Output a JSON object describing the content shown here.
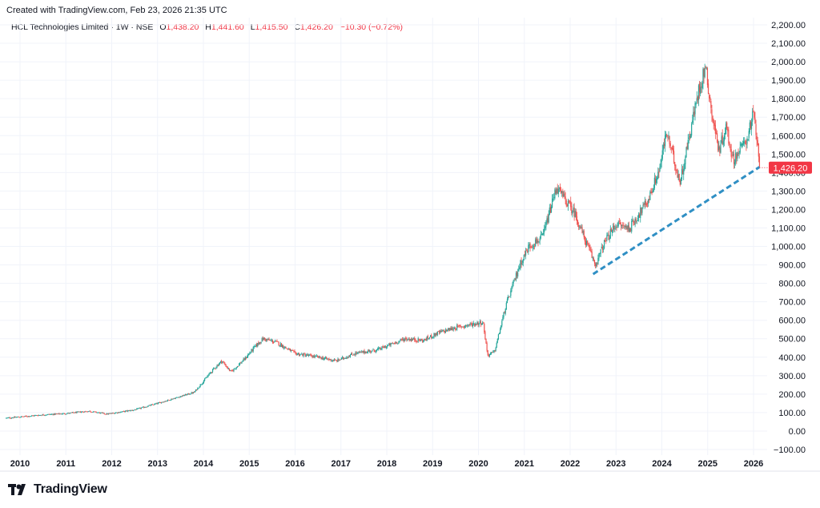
{
  "header": {
    "created_text": "Created with TradingView.com, Feb 23, 2026 21:35 UTC"
  },
  "legend": {
    "symbol": "HCL Technologies Limited · 1W · NSE",
    "open_label": "O",
    "open_value": "1,438.20",
    "high_label": "H",
    "high_value": "1,441.60",
    "low_label": "L",
    "low_value": "1,415.50",
    "close_label": "C",
    "close_value": "1,426.20",
    "change": "−10.30 (−0.72%)"
  },
  "brand": {
    "name": "TradingView",
    "icon": "tradingview-logo-icon"
  },
  "colors": {
    "up": "#26a69a",
    "down": "#ef5350",
    "trendline": "#2f8fc4",
    "grid": "#f0f3fa",
    "axis_text": "#131722",
    "price_badge": "#f23645"
  },
  "chart_data": {
    "type": "candlestick",
    "title": "HCL Technologies Limited · 1W · NSE",
    "x_range": [
      2009.7,
      2026.35
    ],
    "ylim": [
      -100,
      2200
    ],
    "y_ticks": [
      {
        "value": 2200,
        "label": "2,200.00"
      },
      {
        "value": 2100,
        "label": "2,100.00"
      },
      {
        "value": 2000,
        "label": "2,000.00"
      },
      {
        "value": 1900,
        "label": "1,900.00"
      },
      {
        "value": 1800,
        "label": "1,800.00"
      },
      {
        "value": 1700,
        "label": "1,700.00"
      },
      {
        "value": 1600,
        "label": "1,600.00"
      },
      {
        "value": 1500,
        "label": "1,500.00"
      },
      {
        "value": 1400,
        "label": "1,400.00"
      },
      {
        "value": 1300,
        "label": "1,300.00"
      },
      {
        "value": 1200,
        "label": "1,200.00"
      },
      {
        "value": 1100,
        "label": "1,100.00"
      },
      {
        "value": 1000,
        "label": "1,000.00"
      },
      {
        "value": 900,
        "label": "900.00"
      },
      {
        "value": 800,
        "label": "800.00"
      },
      {
        "value": 700,
        "label": "700.00"
      },
      {
        "value": 600,
        "label": "600.00"
      },
      {
        "value": 500,
        "label": "500.00"
      },
      {
        "value": 400,
        "label": "400.00"
      },
      {
        "value": 300,
        "label": "300.00"
      },
      {
        "value": 200,
        "label": "200.00"
      },
      {
        "value": 100,
        "label": "100.00"
      },
      {
        "value": 0,
        "label": "0.00"
      },
      {
        "value": -100,
        "label": "−100.00"
      }
    ],
    "x_ticks": [
      {
        "value": 2010,
        "label": "2010"
      },
      {
        "value": 2011,
        "label": "2011"
      },
      {
        "value": 2012,
        "label": "2012"
      },
      {
        "value": 2013,
        "label": "2013"
      },
      {
        "value": 2014,
        "label": "2014"
      },
      {
        "value": 2015,
        "label": "2015"
      },
      {
        "value": 2016,
        "label": "2016"
      },
      {
        "value": 2017,
        "label": "2017"
      },
      {
        "value": 2018,
        "label": "2018"
      },
      {
        "value": 2019,
        "label": "2019"
      },
      {
        "value": 2020,
        "label": "2020"
      },
      {
        "value": 2021,
        "label": "2021"
      },
      {
        "value": 2022,
        "label": "2022"
      },
      {
        "value": 2023,
        "label": "2023"
      },
      {
        "value": 2024,
        "label": "2024"
      },
      {
        "value": 2025,
        "label": "2025"
      },
      {
        "value": 2026,
        "label": "2026"
      }
    ],
    "price_path": [
      [
        2009.7,
        70
      ],
      [
        2010.5,
        88
      ],
      [
        2011.0,
        95
      ],
      [
        2011.5,
        108
      ],
      [
        2011.9,
        92
      ],
      [
        2012.5,
        115
      ],
      [
        2013.0,
        150
      ],
      [
        2013.4,
        180
      ],
      [
        2013.8,
        210
      ],
      [
        2014.2,
        330
      ],
      [
        2014.4,
        380
      ],
      [
        2014.6,
        320
      ],
      [
        2014.9,
        390
      ],
      [
        2015.0,
        420
      ],
      [
        2015.1,
        450
      ],
      [
        2015.3,
        500
      ],
      [
        2015.6,
        480
      ],
      [
        2016.0,
        420
      ],
      [
        2016.5,
        400
      ],
      [
        2016.9,
        380
      ],
      [
        2017.3,
        420
      ],
      [
        2017.8,
        440
      ],
      [
        2018.0,
        460
      ],
      [
        2018.4,
        500
      ],
      [
        2018.8,
        490
      ],
      [
        2019.1,
        530
      ],
      [
        2019.5,
        560
      ],
      [
        2019.9,
        580
      ],
      [
        2020.1,
        590
      ],
      [
        2020.2,
        410
      ],
      [
        2020.35,
        430
      ],
      [
        2020.6,
        680
      ],
      [
        2020.9,
        900
      ],
      [
        2021.1,
        1000
      ],
      [
        2021.4,
        1050
      ],
      [
        2021.7,
        1320
      ],
      [
        2021.9,
        1250
      ],
      [
        2022.1,
        1180
      ],
      [
        2022.35,
        1020
      ],
      [
        2022.55,
        900
      ],
      [
        2022.75,
        1020
      ],
      [
        2023.0,
        1120
      ],
      [
        2023.3,
        1100
      ],
      [
        2023.7,
        1250
      ],
      [
        2023.95,
        1420
      ],
      [
        2024.1,
        1620
      ],
      [
        2024.25,
        1480
      ],
      [
        2024.4,
        1350
      ],
      [
        2024.6,
        1600
      ],
      [
        2024.8,
        1840
      ],
      [
        2024.95,
        1980
      ],
      [
        2025.1,
        1700
      ],
      [
        2025.25,
        1520
      ],
      [
        2025.4,
        1650
      ],
      [
        2025.55,
        1470
      ],
      [
        2025.7,
        1520
      ],
      [
        2025.85,
        1580
      ],
      [
        2026.0,
        1720
      ],
      [
        2026.08,
        1550
      ],
      [
        2026.13,
        1426.2
      ]
    ],
    "trendline": {
      "start": [
        2022.5,
        850
      ],
      "end": [
        2026.13,
        1430
      ],
      "style": "dashed"
    },
    "last_price": {
      "value": 1426.2,
      "label": "1,426.20"
    }
  }
}
